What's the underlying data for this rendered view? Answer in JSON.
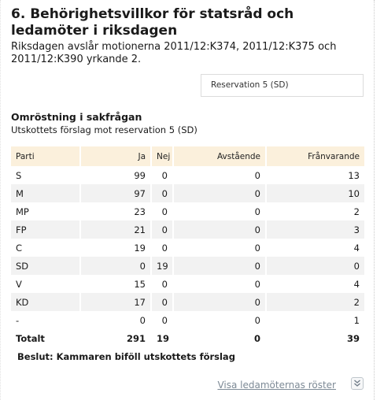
{
  "heading": "6. Behörighetsvillkor för statsråd och ledamöter i riksdagen",
  "intro": "Riksdagen avslår motionerna 2011/12:K374, 2011/12:K375 och 2011/12:K390 yrkande 2.",
  "reservation_label": "Reservation 5 (SD)",
  "vote_title": "Omröstning i sakfrågan",
  "vote_subtitle": "Utskottets förslag mot reservation 5 (SD)",
  "table": {
    "headers": [
      "Parti",
      "Ja",
      "Nej",
      "Avstående",
      "Frånvarande"
    ],
    "rows": [
      [
        "S",
        "99",
        "0",
        "0",
        "13"
      ],
      [
        "M",
        "97",
        "0",
        "0",
        "10"
      ],
      [
        "MP",
        "23",
        "0",
        "0",
        "2"
      ],
      [
        "FP",
        "21",
        "0",
        "0",
        "3"
      ],
      [
        "C",
        "19",
        "0",
        "0",
        "4"
      ],
      [
        "SD",
        "0",
        "19",
        "0",
        "0"
      ],
      [
        "V",
        "15",
        "0",
        "0",
        "4"
      ],
      [
        "KD",
        "17",
        "0",
        "0",
        "2"
      ],
      [
        "-",
        "0",
        "0",
        "0",
        "1"
      ]
    ],
    "total": [
      "Totalt",
      "291",
      "19",
      "0",
      "39"
    ]
  },
  "decision": "Beslut: Kammaren biföll utskottets förslag",
  "show_members_link": "Visa ledamöternas röster",
  "colors": {
    "header_bg": "#fbf0dc",
    "stripe_bg": "#f2f2f2",
    "link": "#7d8a96"
  },
  "icons": {
    "expand": "double-chevron-down-icon"
  }
}
